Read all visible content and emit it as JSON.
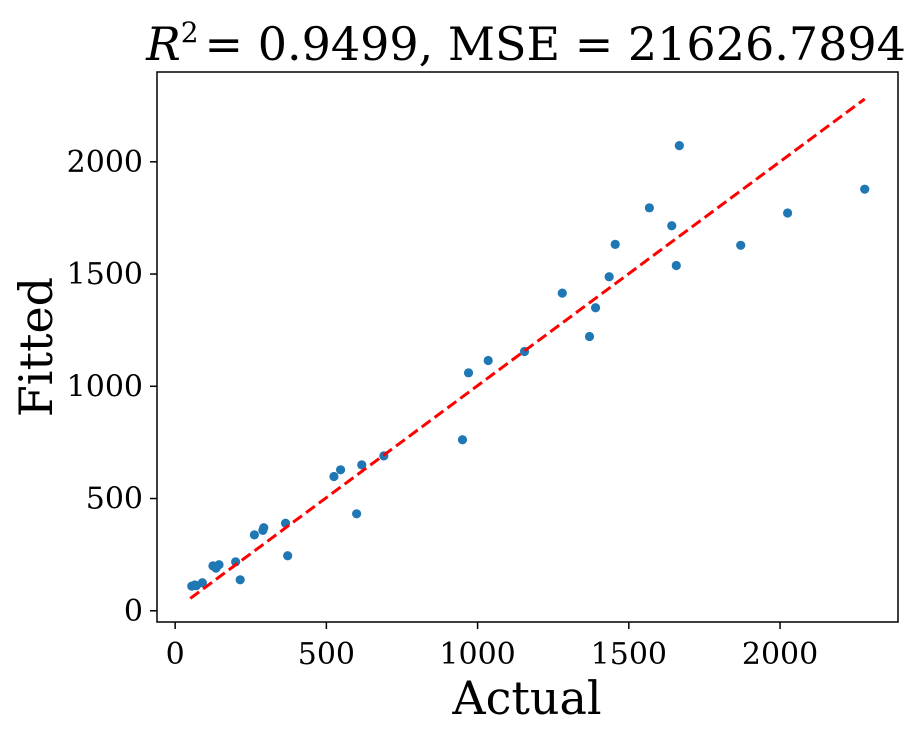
{
  "chart_data": {
    "type": "scatter",
    "title_prefix": "R",
    "title_exponent": "2",
    "title_rest": "= 0.9499, MSE = 21626.7894",
    "xlabel": "Actual",
    "ylabel": "Fitted",
    "xlim": [
      -60,
      2390
    ],
    "ylim": [
      -50,
      2400
    ],
    "xticks": [
      0,
      500,
      1000,
      1500,
      2000
    ],
    "yticks": [
      0,
      500,
      1000,
      1500,
      2000
    ],
    "point_color": "#1f77b4",
    "fit_line_color": "#ff0000",
    "fit_line": {
      "x": [
        50,
        2280
      ],
      "y": [
        55,
        2280
      ],
      "style": "dashed"
    },
    "points": [
      {
        "x": 55,
        "y": 110
      },
      {
        "x": 65,
        "y": 115
      },
      {
        "x": 70,
        "y": 112
      },
      {
        "x": 90,
        "y": 125
      },
      {
        "x": 125,
        "y": 200
      },
      {
        "x": 135,
        "y": 190
      },
      {
        "x": 145,
        "y": 205
      },
      {
        "x": 200,
        "y": 218
      },
      {
        "x": 215,
        "y": 138
      },
      {
        "x": 262,
        "y": 338
      },
      {
        "x": 290,
        "y": 358
      },
      {
        "x": 293,
        "y": 370
      },
      {
        "x": 365,
        "y": 390
      },
      {
        "x": 372,
        "y": 245
      },
      {
        "x": 525,
        "y": 598
      },
      {
        "x": 547,
        "y": 628
      },
      {
        "x": 600,
        "y": 432
      },
      {
        "x": 617,
        "y": 650
      },
      {
        "x": 690,
        "y": 690
      },
      {
        "x": 950,
        "y": 762
      },
      {
        "x": 970,
        "y": 1060
      },
      {
        "x": 1035,
        "y": 1115
      },
      {
        "x": 1155,
        "y": 1155
      },
      {
        "x": 1280,
        "y": 1415
      },
      {
        "x": 1370,
        "y": 1222
      },
      {
        "x": 1390,
        "y": 1350
      },
      {
        "x": 1435,
        "y": 1488
      },
      {
        "x": 1455,
        "y": 1632
      },
      {
        "x": 1568,
        "y": 1795
      },
      {
        "x": 1642,
        "y": 1715
      },
      {
        "x": 1657,
        "y": 1538
      },
      {
        "x": 1667,
        "y": 2072
      },
      {
        "x": 1870,
        "y": 1628
      },
      {
        "x": 2025,
        "y": 1772
      },
      {
        "x": 2280,
        "y": 1878
      }
    ]
  }
}
